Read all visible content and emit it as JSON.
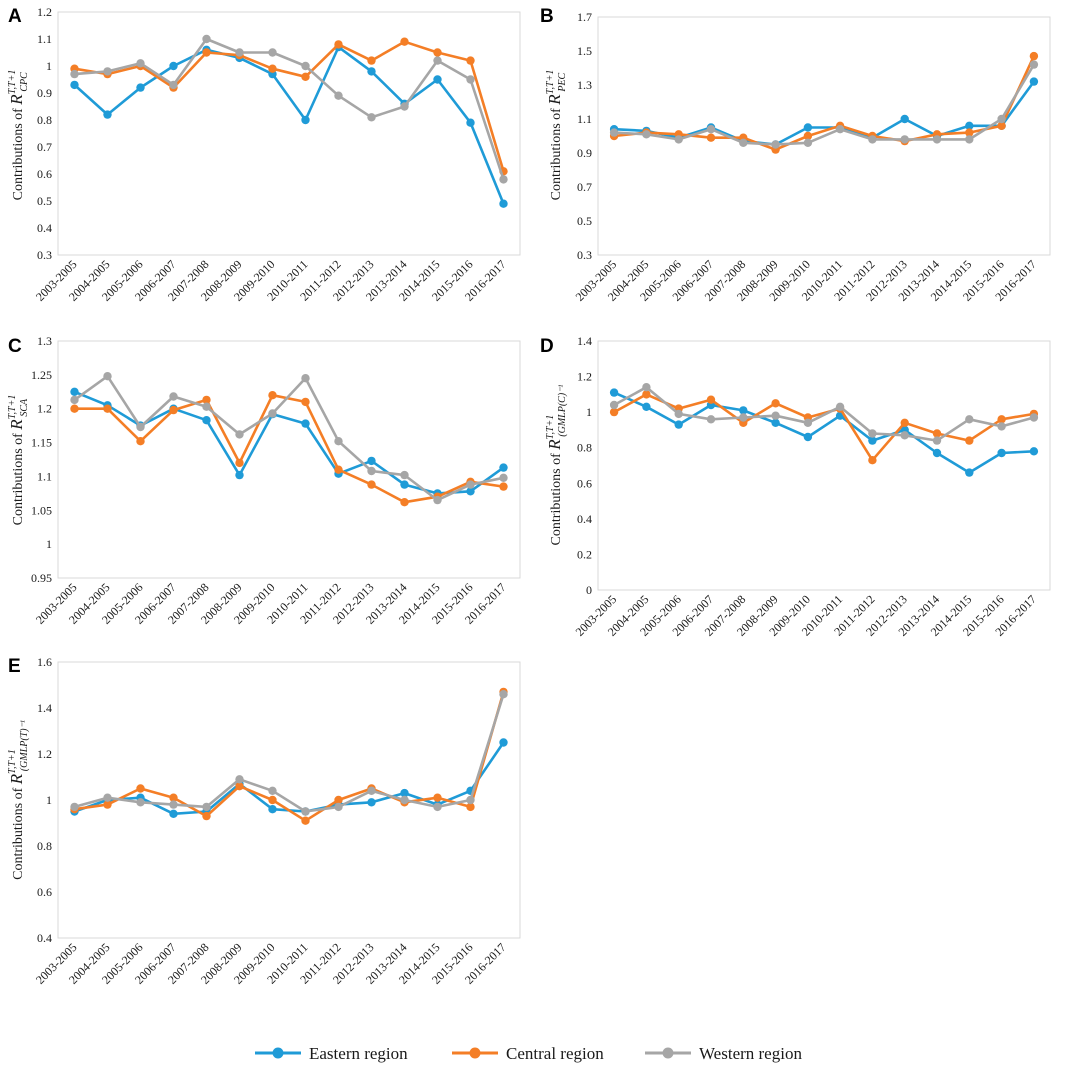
{
  "colors": {
    "eastern": "#1f9bd7",
    "central": "#f47e26",
    "western": "#a6a6a6"
  },
  "legend": [
    {
      "name": "Eastern region",
      "color": "#1f9bd7"
    },
    {
      "name": "Central region",
      "color": "#f47e26"
    },
    {
      "name": "Western region",
      "color": "#a6a6a6"
    }
  ],
  "chart_data": [
    {
      "panel": "A",
      "type": "line",
      "ylabel_prefix": "Contributions of",
      "ylabel_symbol": "R",
      "ylabel_superscript": "T,T+1",
      "ylabel_subscript": "CPC",
      "categories": [
        "2003-2005",
        "2004-2005",
        "2005-2006",
        "2006-2007",
        "2007-2008",
        "2008-2009",
        "2009-2010",
        "2010-2011",
        "2011-2012",
        "2012-2013",
        "2013-2014",
        "2014-2015",
        "2015-2016",
        "2016-2017"
      ],
      "ylim": [
        0.3,
        1.2
      ],
      "yticks": [
        "0.3",
        "0.4",
        "0.5",
        "0.6",
        "0.7",
        "0.8",
        "0.9",
        "1",
        "1.1",
        "1.2"
      ],
      "series": [
        {
          "name": "Eastern region",
          "values": [
            0.93,
            0.82,
            0.92,
            1.0,
            1.06,
            1.03,
            0.97,
            0.8,
            1.07,
            0.98,
            0.86,
            0.95,
            0.79,
            0.49
          ]
        },
        {
          "name": "Central region",
          "values": [
            0.99,
            0.97,
            1.0,
            0.92,
            1.05,
            1.04,
            0.99,
            0.96,
            1.08,
            1.02,
            1.09,
            1.05,
            1.02,
            0.61
          ]
        },
        {
          "name": "Western region",
          "values": [
            0.97,
            0.98,
            1.01,
            0.93,
            1.1,
            1.05,
            1.05,
            1.0,
            0.89,
            0.81,
            0.85,
            1.02,
            0.95,
            0.58
          ]
        }
      ]
    },
    {
      "panel": "B",
      "type": "line",
      "ylabel_prefix": "Contributions of",
      "ylabel_symbol": "R",
      "ylabel_superscript": "T,T+1",
      "ylabel_subscript": "PEC",
      "categories": [
        "2003-2005",
        "2004-2005",
        "2005-2006",
        "2006-2007",
        "2007-2008",
        "2008-2009",
        "2009-2010",
        "2010-2011",
        "2011-2012",
        "2012-2013",
        "2013-2014",
        "2014-2015",
        "2015-2016",
        "2016-2017"
      ],
      "ylim": [
        0.3,
        1.7
      ],
      "yticks": [
        "0.3",
        "0.5",
        "0.7",
        "0.9",
        "1.1",
        "1.3",
        "1.5",
        "1.7"
      ],
      "series": [
        {
          "name": "Eastern region",
          "values": [
            1.04,
            1.03,
            0.99,
            1.05,
            0.97,
            0.95,
            1.05,
            1.05,
            0.99,
            1.1,
            1.0,
            1.06,
            1.06,
            1.32
          ]
        },
        {
          "name": "Central region",
          "values": [
            1.0,
            1.02,
            1.01,
            0.99,
            0.99,
            0.92,
            1.0,
            1.06,
            1.0,
            0.97,
            1.01,
            1.02,
            1.06,
            1.47
          ]
        },
        {
          "name": "Western region",
          "values": [
            1.02,
            1.01,
            0.98,
            1.04,
            0.96,
            0.95,
            0.96,
            1.04,
            0.98,
            0.98,
            0.98,
            0.98,
            1.1,
            1.42
          ]
        }
      ]
    },
    {
      "panel": "C",
      "type": "line",
      "ylabel_prefix": "Contributions of",
      "ylabel_symbol": "R",
      "ylabel_superscript": "T,T+1",
      "ylabel_subscript": "SCA",
      "categories": [
        "2003-2005",
        "2004-2005",
        "2005-2006",
        "2006-2007",
        "2007-2008",
        "2008-2009",
        "2009-2010",
        "2010-2011",
        "2011-2012",
        "2012-2013",
        "2013-2014",
        "2014-2015",
        "2015-2016",
        "2016-2017"
      ],
      "ylim": [
        0.95,
        1.3
      ],
      "yticks": [
        "0.95",
        "1",
        "1.05",
        "1.1",
        "1.15",
        "1.2",
        "1.25",
        "1.3"
      ],
      "series": [
        {
          "name": "Eastern region",
          "values": [
            1.225,
            1.205,
            1.175,
            1.2,
            1.183,
            1.102,
            1.192,
            1.178,
            1.104,
            1.123,
            1.088,
            1.075,
            1.078,
            1.113
          ]
        },
        {
          "name": "Central region",
          "values": [
            1.2,
            1.2,
            1.152,
            1.198,
            1.213,
            1.12,
            1.22,
            1.21,
            1.11,
            1.088,
            1.062,
            1.07,
            1.092,
            1.085
          ]
        },
        {
          "name": "Western region",
          "values": [
            1.213,
            1.248,
            1.173,
            1.218,
            1.203,
            1.162,
            1.193,
            1.245,
            1.152,
            1.108,
            1.102,
            1.065,
            1.088,
            1.098
          ]
        }
      ]
    },
    {
      "panel": "D",
      "type": "line",
      "ylabel_prefix": "Contributions of",
      "ylabel_symbol": "R",
      "ylabel_superscript": "T,T+1",
      "ylabel_subscript": "(GMLP(C)⁻¹",
      "categories": [
        "2003-2005",
        "2004-2005",
        "2005-2006",
        "2006-2007",
        "2007-2008",
        "2008-2009",
        "2009-2010",
        "2010-2011",
        "2011-2012",
        "2012-2013",
        "2013-2014",
        "2014-2015",
        "2015-2016",
        "2016-2017"
      ],
      "ylim": [
        0,
        1.4
      ],
      "yticks": [
        "0",
        "0.2",
        "0.4",
        "0.6",
        "0.8",
        "1",
        "1.2",
        "1.4"
      ],
      "series": [
        {
          "name": "Eastern region",
          "values": [
            1.11,
            1.03,
            0.93,
            1.04,
            1.01,
            0.94,
            0.86,
            0.98,
            0.84,
            0.9,
            0.77,
            0.66,
            0.77,
            0.78
          ]
        },
        {
          "name": "Central region",
          "values": [
            1.0,
            1.1,
            1.02,
            1.07,
            0.94,
            1.05,
            0.97,
            1.02,
            0.73,
            0.94,
            0.88,
            0.84,
            0.96,
            0.99
          ]
        },
        {
          "name": "Western region",
          "values": [
            1.04,
            1.14,
            0.99,
            0.96,
            0.97,
            0.98,
            0.94,
            1.03,
            0.88,
            0.87,
            0.84,
            0.96,
            0.92,
            0.97
          ]
        }
      ]
    },
    {
      "panel": "E",
      "type": "line",
      "ylabel_prefix": "Contributions of",
      "ylabel_symbol": "R",
      "ylabel_superscript": "T,T+1",
      "ylabel_subscript": "(GMLP(T)⁻¹",
      "categories": [
        "2003-2005",
        "2004-2005",
        "2005-2006",
        "2006-2007",
        "2007-2008",
        "2008-2009",
        "2009-2010",
        "2010-2011",
        "2011-2012",
        "2012-2013",
        "2013-2014",
        "2014-2015",
        "2015-2016",
        "2016-2017"
      ],
      "ylim": [
        0.4,
        1.6
      ],
      "yticks": [
        "0.4",
        "0.6",
        "0.8",
        "1",
        "1.2",
        "1.4",
        "1.6"
      ],
      "series": [
        {
          "name": "Eastern region",
          "values": [
            0.95,
            1.0,
            1.01,
            0.94,
            0.95,
            1.07,
            0.96,
            0.95,
            0.98,
            0.99,
            1.03,
            0.98,
            1.04,
            1.25
          ]
        },
        {
          "name": "Central region",
          "values": [
            0.96,
            0.98,
            1.05,
            1.01,
            0.93,
            1.06,
            1.0,
            0.91,
            1.0,
            1.05,
            0.99,
            1.01,
            0.97,
            1.47
          ]
        },
        {
          "name": "Western region",
          "values": [
            0.97,
            1.01,
            0.99,
            0.98,
            0.97,
            1.09,
            1.04,
            0.95,
            0.97,
            1.04,
            1.0,
            0.97,
            1.0,
            1.46
          ]
        }
      ]
    }
  ]
}
